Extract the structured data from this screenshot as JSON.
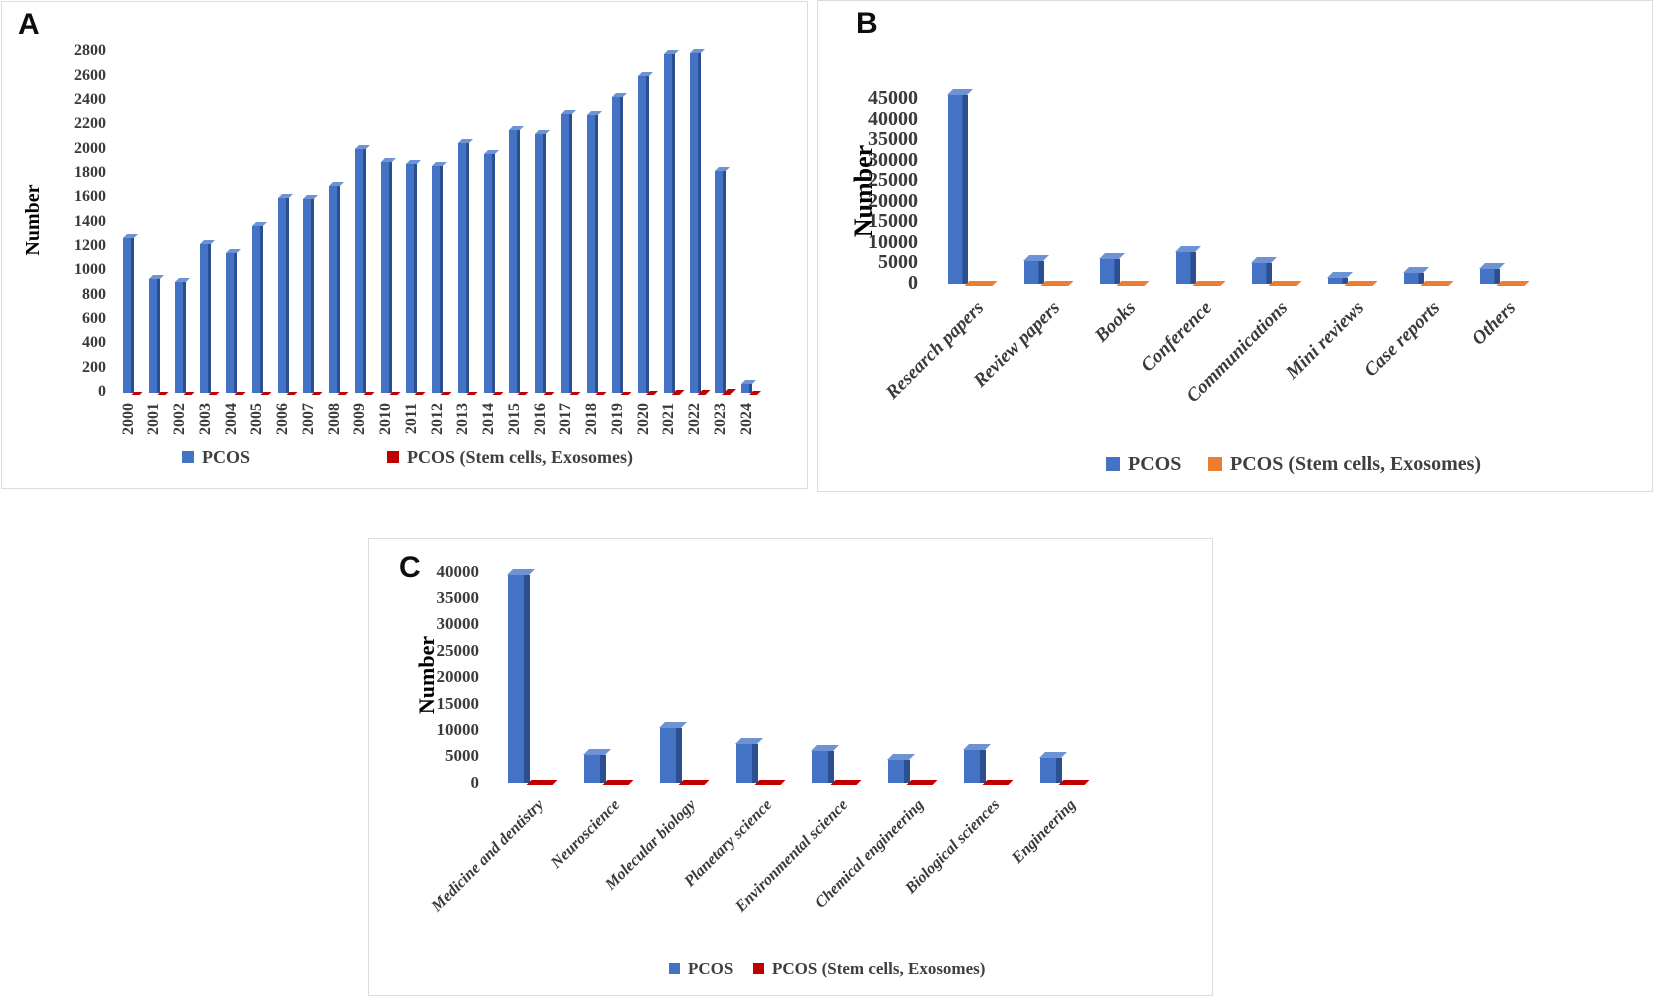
{
  "figure": {
    "background": "#ffffff",
    "series_colors": {
      "pcos_blue": "#4472C4",
      "stem_red": "#C00000",
      "stem_orange": "#ED7D31"
    }
  },
  "chart_data": [
    {
      "type": "bar",
      "panel_label": "A",
      "title": "",
      "ylabel": "Number",
      "xlabel": "",
      "ylim": [
        0,
        2800
      ],
      "ytick_step": 200,
      "grid": false,
      "legend_position": "bottom",
      "categories": [
        "2000",
        "2001",
        "2002",
        "2003",
        "2004",
        "2005",
        "2006",
        "2007",
        "2008",
        "2009",
        "2010",
        "2011",
        "2012",
        "2013",
        "2014",
        "2015",
        "2016",
        "2017",
        "2018",
        "2019",
        "2020",
        "2021",
        "2022",
        "2023",
        "2024"
      ],
      "series": [
        {
          "name": "PCOS",
          "color": "#4472C4",
          "values": [
            1270,
            940,
            910,
            1220,
            1150,
            1370,
            1600,
            1590,
            1700,
            2000,
            1900,
            1880,
            1860,
            2050,
            1960,
            2160,
            2130,
            2290,
            2280,
            2430,
            2600,
            2780,
            2790,
            1820,
            70
          ]
        },
        {
          "name": "PCOS (Stem cells, Exosomes)",
          "color": "#C00000",
          "values": [
            2,
            2,
            2,
            3,
            3,
            4,
            4,
            5,
            5,
            6,
            8,
            8,
            10,
            10,
            12,
            14,
            16,
            18,
            20,
            25,
            30,
            40,
            45,
            50,
            35
          ]
        }
      ]
    },
    {
      "type": "bar",
      "panel_label": "B",
      "title": "",
      "ylabel": "Number",
      "xlabel": "",
      "ylim": [
        0,
        45000
      ],
      "ytick_step": 5000,
      "grid": false,
      "legend_position": "bottom",
      "categories": [
        "Research papers",
        "Review papers",
        "Books",
        "Conference",
        "Communications",
        "Mini reviews",
        "Case reports",
        "Others"
      ],
      "series": [
        {
          "name": "PCOS",
          "color": "#4472C4",
          "values": [
            46000,
            5500,
            6200,
            7800,
            5200,
            1500,
            2600,
            3600
          ]
        },
        {
          "name": "PCOS (Stem cells, Exosomes)",
          "color": "#ED7D31",
          "values": [
            300,
            150,
            150,
            200,
            150,
            60,
            80,
            100
          ]
        }
      ]
    },
    {
      "type": "bar",
      "panel_label": "C",
      "title": "",
      "ylabel": "Number",
      "xlabel": "",
      "ylim": [
        0,
        40000
      ],
      "ytick_step": 5000,
      "grid": false,
      "legend_position": "bottom",
      "categories": [
        "Medicine and dentistry",
        "Neuroscience",
        "Molecular biology",
        "Planetary science",
        "Environmental science",
        "Chemical engineering",
        "Biological sciences",
        "Engineering"
      ],
      "series": [
        {
          "name": "PCOS",
          "color": "#4472C4",
          "values": [
            39500,
            5300,
            10400,
            7400,
            6000,
            4300,
            6300,
            4800
          ]
        },
        {
          "name": "PCOS (Stem cells, Exosomes)",
          "color": "#C00000",
          "values": [
            250,
            100,
            150,
            120,
            100,
            80,
            100,
            90
          ]
        }
      ]
    }
  ]
}
